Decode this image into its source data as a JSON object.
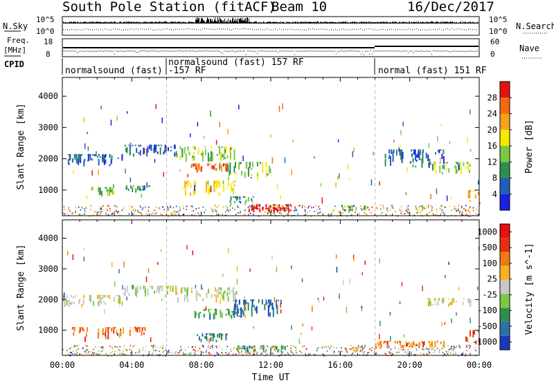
{
  "header": {
    "title": "South Pole Station (fitACF)",
    "beam": "Beam 10",
    "date": "16/Dec/2017"
  },
  "status_panels": {
    "nsky": {
      "label": "N.Sky",
      "ticks": [
        "10^5",
        "10^0"
      ]
    },
    "nsearch": {
      "label": "N.Search",
      "ticks": [
        "10^5",
        "10^0"
      ]
    },
    "freq": {
      "label_line1": "Freq.",
      "label_line2": "[MHz]",
      "ticks": [
        "18",
        "8"
      ]
    },
    "nave": {
      "label": "Nave",
      "ticks": [
        "60",
        "0"
      ]
    },
    "cpid": {
      "label": "CPID",
      "segments": [
        {
          "text": "normalsound (fast) -157 RF",
          "start_hour": 0
        },
        {
          "text": "normalsound (fast) 157 RF",
          "start_hour": 6
        },
        {
          "text": "normal (fast) 151 RF",
          "start_hour": 18
        }
      ]
    }
  },
  "chart_data": [
    {
      "type": "heatmap",
      "name": "power",
      "ylabel": "Slant Range [km]",
      "xlabel": "",
      "ylim": [
        180,
        4600
      ],
      "yticks": [
        "1000",
        "2000",
        "3000",
        "4000"
      ],
      "xlim": [
        0,
        24
      ],
      "colorbar": {
        "label": "Power [dB]",
        "ticks": [
          "4",
          "8",
          "12",
          "16",
          "20",
          "24",
          "28"
        ],
        "colors": [
          "#1a20e0",
          "#1f5fb8",
          "#2e8f4e",
          "#7ac943",
          "#f5e900",
          "#f7a21c",
          "#f26b10",
          "#e81010"
        ]
      },
      "regions": [
        {
          "t": [
            0.0,
            3.5
          ],
          "r": [
            1750,
            2150
          ],
          "level": 1
        },
        {
          "t": [
            3.5,
            6.5
          ],
          "r": [
            2050,
            2450
          ],
          "level": 1
        },
        {
          "t": [
            6.5,
            10.0
          ],
          "r": [
            1900,
            2400
          ],
          "level": 3
        },
        {
          "t": [
            7.2,
            9.5
          ],
          "r": [
            1550,
            1850
          ],
          "level": 6
        },
        {
          "t": [
            9.5,
            12.0
          ],
          "r": [
            1300,
            1900
          ],
          "level": 3
        },
        {
          "t": [
            7.0,
            10.0
          ],
          "r": [
            800,
            1300
          ],
          "level": 4
        },
        {
          "t": [
            9.5,
            11.0
          ],
          "r": [
            500,
            800
          ],
          "level": 2
        },
        {
          "t": [
            10.5,
            13.2
          ],
          "r": [
            250,
            550
          ],
          "level": 7
        },
        {
          "t": [
            11.0,
            12.8
          ],
          "r": [
            300,
            450
          ],
          "level": 8
        },
        {
          "t": [
            1.5,
            3.0
          ],
          "r": [
            800,
            1100
          ],
          "level": 3
        },
        {
          "t": [
            3.5,
            5.0
          ],
          "r": [
            900,
            1150
          ],
          "level": 2
        },
        {
          "t": [
            16.0,
            17.5
          ],
          "r": [
            300,
            500
          ],
          "level": 3
        },
        {
          "t": [
            21.0,
            23.5
          ],
          "r": [
            1500,
            1900
          ],
          "level": 3
        },
        {
          "t": [
            18.5,
            22.0
          ],
          "r": [
            1700,
            2300
          ],
          "level": 1
        },
        {
          "t": [
            23.3,
            24.0
          ],
          "r": [
            500,
            1000
          ],
          "level": 5
        }
      ]
    },
    {
      "type": "heatmap",
      "name": "velocity",
      "ylabel": "Slant Range [km]",
      "xlabel": "Time UT",
      "ylim": [
        180,
        4600
      ],
      "yticks": [
        "1000",
        "2000",
        "3000",
        "4000"
      ],
      "xticks": [
        "00:00",
        "04:00",
        "08:00",
        "12:00",
        "16:00",
        "20:00",
        "00:00"
      ],
      "xlim": [
        0,
        24
      ],
      "colorbar": {
        "label": "Velocity [m s^-1]",
        "ticks": [
          "1000",
          "500",
          "100",
          "25",
          "-25",
          "-100",
          "-500",
          "-1000"
        ],
        "colors": [
          "#1a3ab8",
          "#2f6fa8",
          "#2e8f4e",
          "#7ac943",
          "#c8c8c8",
          "#f7b21c",
          "#f27a10",
          "#e83010",
          "#e81010"
        ]
      },
      "regions": [
        {
          "t": [
            0.0,
            3.5
          ],
          "r": [
            1750,
            2150
          ],
          "level": 4
        },
        {
          "t": [
            3.5,
            6.5
          ],
          "r": [
            2050,
            2450
          ],
          "level": 4
        },
        {
          "t": [
            6.5,
            10.0
          ],
          "r": [
            1900,
            2400
          ],
          "level": 4
        },
        {
          "t": [
            7.5,
            10.5
          ],
          "r": [
            1300,
            1700
          ],
          "level": 2
        },
        {
          "t": [
            9.8,
            12.5
          ],
          "r": [
            1400,
            2000
          ],
          "level": 1
        },
        {
          "t": [
            0.5,
            1.5
          ],
          "r": [
            600,
            1100
          ],
          "level": 6
        },
        {
          "t": [
            2.0,
            3.5
          ],
          "r": [
            700,
            1100
          ],
          "level": 6
        },
        {
          "t": [
            3.8,
            4.8
          ],
          "r": [
            800,
            1100
          ],
          "level": 6
        },
        {
          "t": [
            7.5,
            9.5
          ],
          "r": [
            600,
            900
          ],
          "level": 2
        },
        {
          "t": [
            10.0,
            13.0
          ],
          "r": [
            250,
            500
          ],
          "level": 2
        },
        {
          "t": [
            16.0,
            17.5
          ],
          "r": [
            250,
            450
          ],
          "level": 5
        },
        {
          "t": [
            18.0,
            22.0
          ],
          "r": [
            400,
            650
          ],
          "level": 6
        },
        {
          "t": [
            21.0,
            23.5
          ],
          "r": [
            1750,
            2050
          ],
          "level": 4
        },
        {
          "t": [
            23.2,
            24.0
          ],
          "r": [
            500,
            1000
          ],
          "level": 7
        }
      ]
    }
  ]
}
